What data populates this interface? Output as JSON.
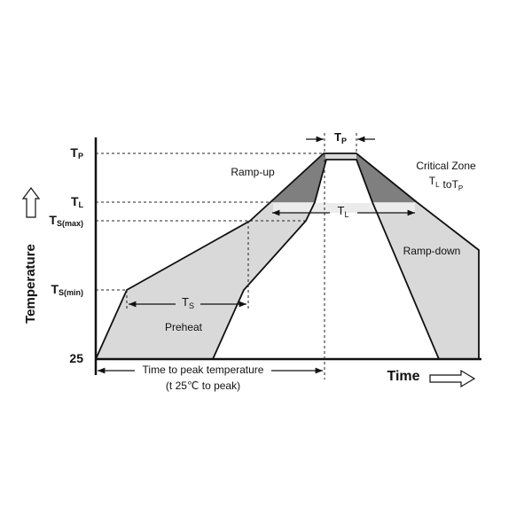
{
  "y_axis": {
    "title": "Temperature",
    "levels": [
      {
        "main": "T",
        "sub": "P"
      },
      {
        "main": "T",
        "sub": "L"
      },
      {
        "main": "T",
        "sub": "S(max)"
      },
      {
        "main": "T",
        "sub": "S(min)"
      },
      {
        "main": "25"
      }
    ]
  },
  "x_axis": {
    "title": "Time"
  },
  "regions": {
    "ramp_up": "Ramp-up",
    "ramp_down": "Ramp-down",
    "preheat": "Preheat",
    "critical_zone": {
      "title": "Critical Zone",
      "from": {
        "main": "T",
        "sub": "L"
      },
      "joiner": "to",
      "to": {
        "main": "T",
        "sub": "P"
      }
    }
  },
  "intervals": {
    "tp": {
      "main": "T",
      "sub": "P"
    },
    "tl": {
      "main": "T",
      "sub": "L"
    },
    "ts": {
      "main": "T",
      "sub": "S"
    },
    "time_to_peak": {
      "label": "Time to peak temperature",
      "note": "(t 25℃ to peak)"
    }
  }
}
